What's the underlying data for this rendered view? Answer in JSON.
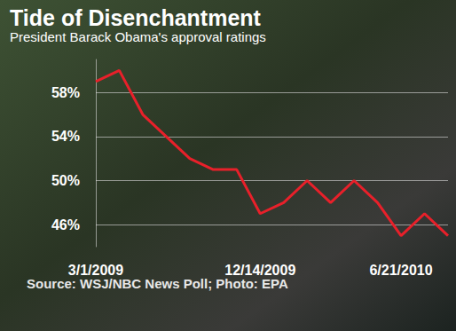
{
  "chart_data": {
    "type": "line",
    "title": "Tide of Disenchantment",
    "subtitle": "President Barack Obama's approval ratings",
    "annotations": [
      "Source: WSJ/NBC News Poll; Photo: EPA"
    ],
    "categories": [
      "3/1/2009",
      null,
      null,
      null,
      null,
      null,
      null,
      "12/14/2009",
      null,
      null,
      null,
      null,
      null,
      "6/21/2010",
      null,
      null
    ],
    "values": [
      59,
      60,
      56,
      54,
      52,
      51,
      51,
      47,
      48,
      50,
      48,
      50,
      48,
      45,
      47,
      45
    ],
    "color": "#e8202a",
    "ylim": [
      44,
      61
    ],
    "yticks": [
      {
        "value": 46,
        "label": "46%"
      },
      {
        "value": 50,
        "label": "50%"
      },
      {
        "value": 54,
        "label": "54%"
      },
      {
        "value": 58,
        "label": "58%"
      }
    ],
    "grid": true
  }
}
